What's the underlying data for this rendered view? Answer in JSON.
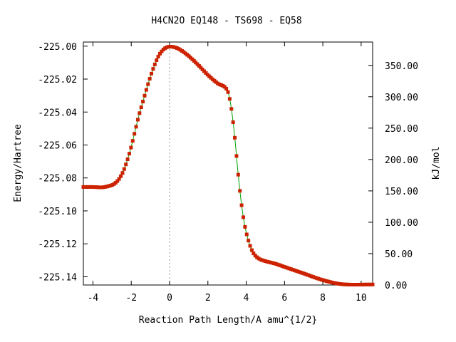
{
  "chart_data": {
    "type": "line",
    "title": "H4CN2O   EQ148 - TS698 - EQ58",
    "xlabel": "Reaction Path Length/A amu^{1/2}",
    "ylabel": "Energy/Hartree",
    "y2label": "kJ/mol",
    "xlim": [
      -4.5,
      10.6
    ],
    "ylim": [
      -225.145,
      -224.9975
    ],
    "y2lim": [
      0.0,
      387.2
    ],
    "x_ticks": [
      -4,
      -2,
      0,
      2,
      4,
      6,
      8,
      10
    ],
    "x_tick_labels": [
      "-4",
      "-2",
      "0",
      "2",
      "4",
      "6",
      "8",
      "10"
    ],
    "y_ticks": [
      -225.0,
      -225.02,
      -225.04,
      -225.06,
      -225.08,
      -225.1,
      -225.12,
      -225.14
    ],
    "y_tick_labels": [
      "-225.00",
      "-225.02",
      "-225.04",
      "-225.06",
      "-225.08",
      "-225.10",
      "-225.12",
      "-225.14"
    ],
    "y2_ticks": [
      0,
      50,
      100,
      150,
      200,
      250,
      300,
      350
    ],
    "y2_tick_labels": [
      "0.00",
      "50.00",
      "100.00",
      "150.00",
      "200.00",
      "250.00",
      "300.00",
      "350.00"
    ],
    "ts_marker_x": 0,
    "grid": false,
    "line_color": "#00a000",
    "marker_color": "#cc2200",
    "dashed_color": "#999999",
    "profile": {
      "x": [
        -4.5,
        -4.0,
        -3.5,
        -3.2,
        -3.0,
        -2.8,
        -2.6,
        -2.4,
        -2.2,
        -2.0,
        -1.8,
        -1.6,
        -1.4,
        -1.2,
        -1.0,
        -0.8,
        -0.6,
        -0.4,
        -0.2,
        0.0,
        0.3,
        0.6,
        1.0,
        1.5,
        2.0,
        2.5,
        3.0,
        3.2,
        3.4,
        3.6,
        3.8,
        4.0,
        4.3,
        4.6,
        5.0,
        5.5,
        6.0,
        7.0,
        8.0,
        9.0,
        10.6
      ],
      "y": [
        -225.0855,
        -225.0855,
        -225.0857,
        -225.085,
        -225.0843,
        -225.0828,
        -225.08,
        -225.0755,
        -225.069,
        -225.061,
        -225.0515,
        -225.042,
        -225.034,
        -225.026,
        -225.0185,
        -225.012,
        -225.0065,
        -225.003,
        -225.001,
        -225.0003,
        -225.0008,
        -225.0025,
        -225.006,
        -225.0115,
        -225.0175,
        -225.0225,
        -225.0265,
        -225.036,
        -225.055,
        -225.08,
        -225.1,
        -225.113,
        -225.124,
        -225.1285,
        -225.1305,
        -225.132,
        -225.134,
        -225.138,
        -225.142,
        -225.1445,
        -225.1447
      ]
    }
  }
}
